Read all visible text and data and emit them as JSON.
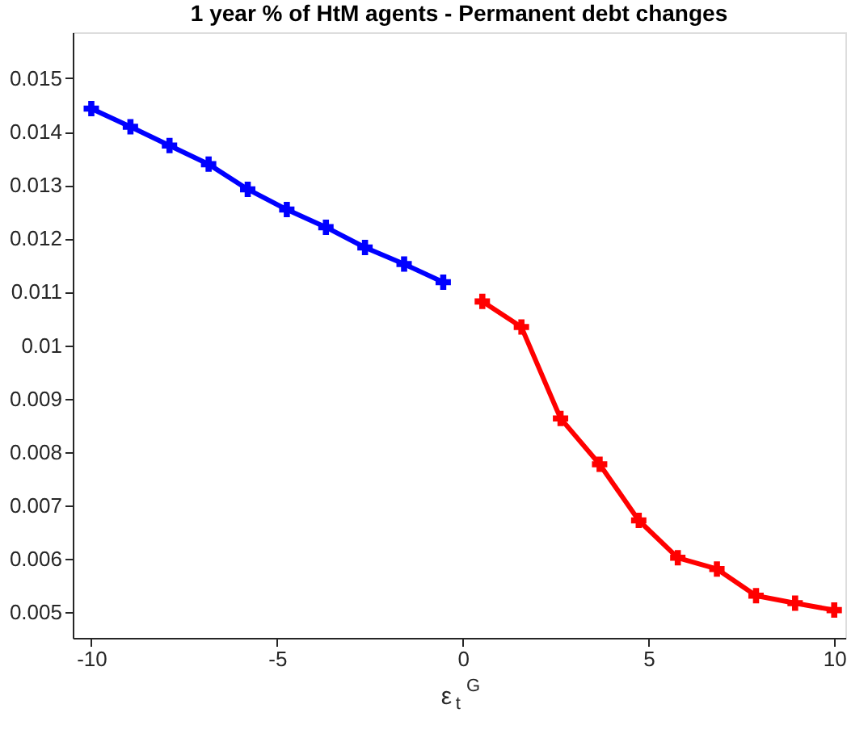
{
  "chart_data": {
    "type": "line",
    "title": "1 year % of HtM agents - Permanent debt changes",
    "xlabel": "ε$_{t}$$^{G}$",
    "series": [
      {
        "color": "#0000ff",
        "x": [
          -10,
          -8.947,
          -7.895,
          -6.842,
          -5.789,
          -4.737,
          -3.684,
          -2.632,
          -1.579,
          -0.526
        ],
        "values": [
          0.01443,
          0.01409,
          0.01374,
          0.01339,
          0.01292,
          0.01254,
          0.01221,
          0.01183,
          0.01152,
          0.01118
        ]
      },
      {
        "color": "#ff0000",
        "x": [
          0.526,
          1.579,
          2.632,
          3.684,
          4.737,
          5.789,
          6.842,
          7.895,
          8.947,
          10
        ],
        "values": [
          0.01082,
          0.01034,
          0.00863,
          0.00777,
          0.00672,
          0.00602,
          0.00581,
          0.00531,
          0.00517,
          0.00504
        ]
      }
    ],
    "xlim": [
      -10.5,
      10.3
    ],
    "xticks": [
      -10,
      -5,
      0,
      5,
      10
    ],
    "ylim": [
      0.00452,
      0.01586
    ],
    "yticks": [
      0.005,
      0.006,
      0.007,
      0.008,
      0.009,
      0.01,
      0.011,
      0.012,
      0.013,
      0.014,
      0.015
    ],
    "grid": false,
    "marker": "cross",
    "line_style": "solid"
  }
}
